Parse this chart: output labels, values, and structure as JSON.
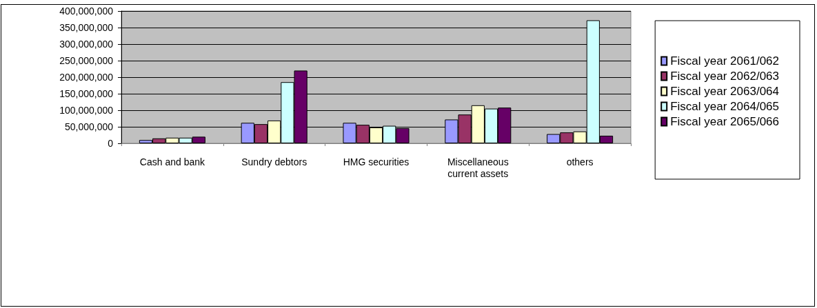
{
  "chart_data": {
    "type": "bar",
    "categories": [
      "Cash and bank",
      "Sundry debtors",
      "HMG securities",
      "Miscellaneous\ncurrent assets",
      "others"
    ],
    "series": [
      {
        "name": "Fiscal year 2061/062",
        "color": "#9999ff",
        "values": [
          10000000,
          62000000,
          62000000,
          72000000,
          28000000
        ]
      },
      {
        "name": "Fiscal year 2062/063",
        "color": "#993366",
        "values": [
          15000000,
          58000000,
          56000000,
          87000000,
          33000000
        ]
      },
      {
        "name": "Fiscal year 2063/064",
        "color": "#ffffcc",
        "values": [
          17000000,
          69000000,
          48000000,
          115000000,
          36000000
        ]
      },
      {
        "name": "Fiscal year 2064/065",
        "color": "#ccffff",
        "values": [
          17000000,
          185000000,
          53000000,
          105000000,
          372000000
        ]
      },
      {
        "name": "Fiscal year 2065/066",
        "color": "#660066",
        "values": [
          20000000,
          220000000,
          46000000,
          108000000,
          23000000
        ]
      }
    ],
    "ylim": [
      0,
      400000000
    ],
    "yticks": [
      0,
      {
        "value": 50000000,
        "label": "50,000,000"
      },
      {
        "value": 100000000,
        "label": "100,000,000"
      },
      {
        "value": 150000000,
        "label": "150,000,000"
      },
      {
        "value": 200000000,
        "label": "200,000,000"
      },
      {
        "value": 250000000,
        "label": "250,000,000"
      },
      {
        "value": 300000000,
        "label": "300,000,000"
      },
      {
        "value": 350000000,
        "label": "350,000,000"
      },
      {
        "value": 400000000,
        "label": "400,000,000"
      }
    ],
    "grid": "y",
    "legend": "right"
  }
}
